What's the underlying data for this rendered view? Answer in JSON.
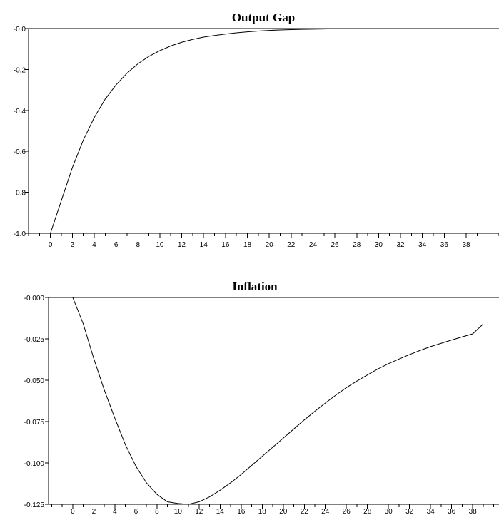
{
  "chart_data": [
    {
      "type": "line",
      "title": "Output Gap",
      "xlabel": "",
      "ylabel": "",
      "ylim": [
        -1.0,
        0.0
      ],
      "xlim": [
        -2,
        41
      ],
      "yticks": [
        -1.0,
        -0.8,
        -0.6,
        -0.4,
        -0.2,
        0.0
      ],
      "ytick_labels": [
        "-1.0",
        "-0.8",
        "-0.6",
        "-0.4",
        "-0.2",
        "-0.0"
      ],
      "xticks": [
        0,
        2,
        4,
        6,
        8,
        10,
        12,
        14,
        16,
        18,
        20,
        22,
        24,
        26,
        28,
        30,
        32,
        34,
        36,
        38
      ],
      "xtick_labels": [
        "0",
        "2",
        "4",
        "6",
        "8",
        "10",
        "12",
        "14",
        "16",
        "18",
        "20",
        "22",
        "24",
        "26",
        "28",
        "30",
        "32",
        "34",
        "36",
        "38"
      ],
      "grid": false,
      "series": [
        {
          "x": [
            0,
            1,
            2,
            3,
            4,
            5,
            6,
            7,
            8,
            9,
            10,
            11,
            12,
            13,
            14,
            15,
            16,
            17,
            18,
            19,
            20,
            21,
            22,
            23,
            24,
            25,
            26,
            27,
            28,
            29,
            30
          ],
          "values": [
            -1.0,
            -0.84,
            -0.68,
            -0.545,
            -0.435,
            -0.345,
            -0.275,
            -0.218,
            -0.172,
            -0.136,
            -0.108,
            -0.085,
            -0.067,
            -0.053,
            -0.042,
            -0.034,
            -0.027,
            -0.021,
            -0.016,
            -0.012,
            -0.009,
            -0.007,
            -0.005,
            -0.004,
            -0.003,
            -0.002,
            -0.001,
            -0.001,
            0.0,
            0.0,
            0.0
          ]
        }
      ]
    },
    {
      "type": "line",
      "title": "Inflation",
      "xlabel": "",
      "ylabel": "",
      "ylim": [
        -0.125,
        0.0
      ],
      "xlim": [
        -2.3,
        40.5
      ],
      "yticks": [
        -0.125,
        -0.1,
        -0.075,
        -0.05,
        -0.025,
        0.0
      ],
      "ytick_labels": [
        "-0.125",
        "-0.100",
        "-0.075",
        "-0.050",
        "-0.025",
        "-0.000"
      ],
      "xticks": [
        0,
        2,
        4,
        6,
        8,
        10,
        12,
        14,
        16,
        18,
        20,
        22,
        24,
        26,
        28,
        30,
        32,
        34,
        36,
        38
      ],
      "xtick_labels": [
        "0",
        "2",
        "4",
        "6",
        "8",
        "10",
        "12",
        "14",
        "16",
        "18",
        "20",
        "22",
        "24",
        "26",
        "28",
        "30",
        "32",
        "34",
        "36",
        "38"
      ],
      "grid": false,
      "series": [
        {
          "x": [
            0,
            1,
            2,
            3,
            4,
            5,
            6,
            7,
            8,
            9,
            10,
            11,
            12,
            13,
            14,
            15,
            16,
            17,
            18,
            19,
            20,
            21,
            22,
            23,
            24,
            25,
            26,
            27,
            28,
            29,
            30,
            31,
            32,
            33,
            34,
            35,
            36,
            37,
            38,
            39
          ],
          "values": [
            0.0,
            -0.016,
            -0.037,
            -0.056,
            -0.073,
            -0.089,
            -0.102,
            -0.112,
            -0.119,
            -0.1235,
            -0.1245,
            -0.125,
            -0.1235,
            -0.1205,
            -0.1165,
            -0.112,
            -0.107,
            -0.1015,
            -0.096,
            -0.0905,
            -0.085,
            -0.0795,
            -0.074,
            -0.0688,
            -0.0638,
            -0.059,
            -0.0545,
            -0.0505,
            -0.0468,
            -0.0432,
            -0.04,
            -0.0372,
            -0.0345,
            -0.032,
            -0.0297,
            -0.0277,
            -0.0257,
            -0.0238,
            -0.022,
            -0.016
          ]
        }
      ]
    }
  ]
}
